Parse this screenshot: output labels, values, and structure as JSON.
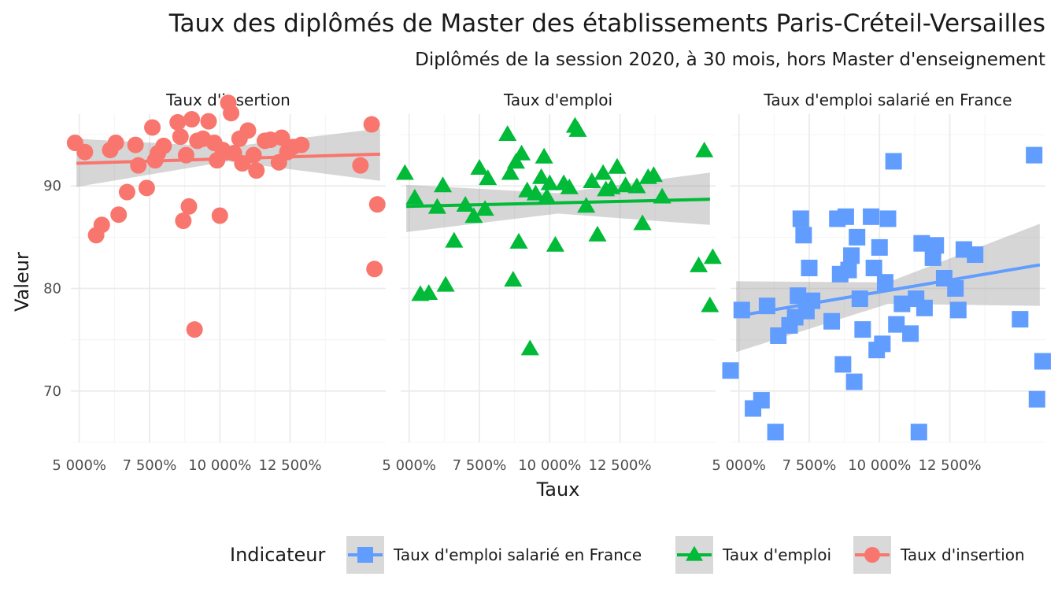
{
  "chart_data": {
    "type": "scatter",
    "title": "Taux des diplômés de Master des établissements Paris-Créteil-Versailles",
    "subtitle": "Diplômés de la session 2020, à 30 mois, hors Master d'enseignement",
    "xlabel": "Taux",
    "ylabel": "Valeur",
    "xlim": [
      4700,
      15900
    ],
    "ylim": [
      65,
      97
    ],
    "x_ticks": [
      {
        "value": 5000,
        "label": "5 000%"
      },
      {
        "value": 7500,
        "label": "7 500%"
      },
      {
        "value": 10000,
        "label": "10 000%"
      },
      {
        "value": 12500,
        "label": "12 500%"
      }
    ],
    "y_ticks": [
      {
        "value": 70,
        "label": "70"
      },
      {
        "value": 80,
        "label": "80"
      },
      {
        "value": 90,
        "label": "90"
      }
    ],
    "grid": true,
    "legend": {
      "title": "Indicateur",
      "position": "bottom",
      "entries": [
        {
          "label": "Taux d'emploi salarié en France",
          "color": "#619CFF",
          "shape": "square"
        },
        {
          "label": "Taux d'emploi",
          "color": "#00BA38",
          "shape": "triangle"
        },
        {
          "label": "Taux d'insertion",
          "color": "#F8766D",
          "shape": "circle"
        }
      ]
    },
    "panels": [
      {
        "name": "Taux d'insertion",
        "color": "#F8766D",
        "shape": "circle",
        "trend": {
          "x0": 4900,
          "y0": 92.2,
          "x1": 15700,
          "y1": 93.1,
          "band_lo0": 89.9,
          "band_hi0": 94.6,
          "band_mid_lo": 92.4,
          "band_mid_hi": 93.8,
          "band_lo1": 90.5,
          "band_hi1": 95.6
        },
        "points": [
          [
            4850,
            94.2
          ],
          [
            5200,
            93.3
          ],
          [
            5600,
            85.2
          ],
          [
            5800,
            86.2
          ],
          [
            6100,
            93.5
          ],
          [
            6300,
            94.2
          ],
          [
            6400,
            87.2
          ],
          [
            6700,
            89.4
          ],
          [
            7000,
            94.0
          ],
          [
            7100,
            92.0
          ],
          [
            7400,
            89.8
          ],
          [
            7600,
            95.7
          ],
          [
            7700,
            92.5
          ],
          [
            7800,
            93.2
          ],
          [
            8000,
            93.9
          ],
          [
            8500,
            96.2
          ],
          [
            8600,
            94.8
          ],
          [
            8700,
            86.6
          ],
          [
            8800,
            93.0
          ],
          [
            8900,
            88.0
          ],
          [
            9000,
            96.5
          ],
          [
            9100,
            76.0
          ],
          [
            9200,
            94.4
          ],
          [
            9400,
            94.6
          ],
          [
            9600,
            96.3
          ],
          [
            9800,
            94.2
          ],
          [
            9900,
            92.5
          ],
          [
            10000,
            87.1
          ],
          [
            10100,
            93.5
          ],
          [
            10300,
            98.1
          ],
          [
            10400,
            97.1
          ],
          [
            10500,
            93.2
          ],
          [
            10700,
            94.6
          ],
          [
            10800,
            92.2
          ],
          [
            11000,
            95.4
          ],
          [
            11200,
            93.0
          ],
          [
            11300,
            91.5
          ],
          [
            11600,
            94.4
          ],
          [
            11800,
            94.5
          ],
          [
            12100,
            92.3
          ],
          [
            12200,
            94.7
          ],
          [
            12400,
            93.3
          ],
          [
            12600,
            93.8
          ],
          [
            12900,
            94.0
          ],
          [
            15000,
            92.0
          ],
          [
            15400,
            96.0
          ],
          [
            15500,
            81.9
          ],
          [
            15600,
            88.2
          ]
        ]
      },
      {
        "name": "Taux d'emploi",
        "color": "#00BA38",
        "shape": "triangle",
        "trend": {
          "x0": 4900,
          "y0": 88.0,
          "x1": 15700,
          "y1": 88.7,
          "band_lo0": 85.5,
          "band_hi0": 90.1,
          "band_mid_lo": 87.3,
          "band_mid_hi": 89.3,
          "band_lo1": 86.2,
          "band_hi1": 91.3
        },
        "points": [
          [
            4850,
            91.2
          ],
          [
            5200,
            88.8
          ],
          [
            5400,
            79.4
          ],
          [
            5700,
            79.5
          ],
          [
            6000,
            87.9
          ],
          [
            6200,
            90.0
          ],
          [
            6300,
            80.3
          ],
          [
            6600,
            84.6
          ],
          [
            7000,
            88.1
          ],
          [
            7300,
            87.0
          ],
          [
            7500,
            91.7
          ],
          [
            7700,
            87.7
          ],
          [
            7800,
            90.7
          ],
          [
            8500,
            95.0
          ],
          [
            8600,
            91.2
          ],
          [
            8700,
            80.8
          ],
          [
            8800,
            92.3
          ],
          [
            8900,
            84.5
          ],
          [
            9000,
            93.1
          ],
          [
            9200,
            89.5
          ],
          [
            9300,
            74.1
          ],
          [
            9500,
            89.2
          ],
          [
            9700,
            90.8
          ],
          [
            9800,
            92.8
          ],
          [
            9900,
            88.9
          ],
          [
            10000,
            90.2
          ],
          [
            10200,
            84.2
          ],
          [
            10500,
            90.2
          ],
          [
            10700,
            89.8
          ],
          [
            10900,
            95.8
          ],
          [
            11000,
            95.4
          ],
          [
            11300,
            88.0
          ],
          [
            11500,
            90.4
          ],
          [
            11700,
            85.2
          ],
          [
            11900,
            91.2
          ],
          [
            12000,
            89.6
          ],
          [
            12200,
            89.8
          ],
          [
            12400,
            91.8
          ],
          [
            12700,
            90.0
          ],
          [
            13100,
            89.9
          ],
          [
            13300,
            86.3
          ],
          [
            13500,
            90.8
          ],
          [
            13700,
            91.0
          ],
          [
            14000,
            88.9
          ],
          [
            15300,
            82.2
          ],
          [
            15500,
            93.4
          ],
          [
            15700,
            78.3
          ],
          [
            15800,
            83.0
          ]
        ]
      },
      {
        "name": "Taux d'emploi salarié en France",
        "color": "#619CFF",
        "shape": "square",
        "trend": {
          "x0": 4900,
          "y0": 77.3,
          "x1": 15700,
          "y1": 82.3,
          "band_lo0": 73.8,
          "band_hi0": 80.7,
          "band_mid_lo": 78.5,
          "band_mid_hi": 80.6,
          "band_lo1": 78.3,
          "band_hi1": 86.3
        },
        "points": [
          [
            4700,
            72.0
          ],
          [
            5100,
            77.9
          ],
          [
            5500,
            68.3
          ],
          [
            5800,
            69.1
          ],
          [
            6000,
            78.3
          ],
          [
            6300,
            66.0
          ],
          [
            6400,
            75.4
          ],
          [
            6800,
            76.4
          ],
          [
            7000,
            77.2
          ],
          [
            7100,
            79.3
          ],
          [
            7200,
            86.8
          ],
          [
            7300,
            85.2
          ],
          [
            7400,
            77.8
          ],
          [
            7500,
            82.0
          ],
          [
            7600,
            78.8
          ],
          [
            8300,
            76.8
          ],
          [
            8500,
            86.8
          ],
          [
            8600,
            81.4
          ],
          [
            8700,
            72.6
          ],
          [
            8800,
            87.0
          ],
          [
            8900,
            81.8
          ],
          [
            9000,
            83.2
          ],
          [
            9100,
            70.9
          ],
          [
            9200,
            85.0
          ],
          [
            9300,
            79.0
          ],
          [
            9400,
            76.0
          ],
          [
            9700,
            87.0
          ],
          [
            9800,
            82.0
          ],
          [
            9900,
            74.0
          ],
          [
            10000,
            84.0
          ],
          [
            10100,
            74.6
          ],
          [
            10200,
            80.6
          ],
          [
            10300,
            86.8
          ],
          [
            10500,
            92.4
          ],
          [
            10600,
            76.5
          ],
          [
            10800,
            78.5
          ],
          [
            11100,
            75.6
          ],
          [
            11300,
            79.0
          ],
          [
            11400,
            66.0
          ],
          [
            11500,
            84.4
          ],
          [
            11600,
            78.1
          ],
          [
            11900,
            83.0
          ],
          [
            12000,
            84.2
          ],
          [
            12300,
            81.0
          ],
          [
            12700,
            80.0
          ],
          [
            12800,
            77.9
          ],
          [
            13000,
            83.8
          ],
          [
            13400,
            83.3
          ],
          [
            15000,
            77.0
          ],
          [
            15500,
            93.0
          ],
          [
            15600,
            69.2
          ],
          [
            15800,
            72.9
          ]
        ]
      }
    ]
  }
}
